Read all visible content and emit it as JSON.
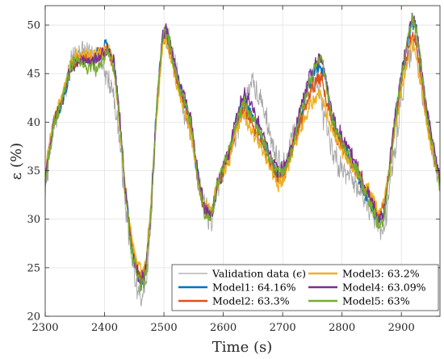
{
  "chart_data": {
    "type": "line",
    "xlabel": "Time (s)",
    "ylabel": "ε (%)",
    "xlim": [
      2300,
      2965
    ],
    "ylim": [
      20,
      52
    ],
    "xticks": [
      2300,
      2400,
      2500,
      2600,
      2700,
      2800,
      2900
    ],
    "yticks": [
      20,
      25,
      30,
      35,
      40,
      45,
      50
    ],
    "grid": true,
    "legend_position": "bottom-right",
    "legend_columns": 2,
    "series": [
      {
        "name": "Validation data (ϵ)",
        "color": "#a6a6a6",
        "noise": 1.6,
        "x": [
          2300,
          2305,
          2315,
          2330,
          2345,
          2360,
          2375,
          2390,
          2405,
          2415,
          2425,
          2435,
          2445,
          2455,
          2462,
          2470,
          2478,
          2488,
          2497,
          2503,
          2510,
          2520,
          2532,
          2545,
          2557,
          2568,
          2580,
          2590,
          2600,
          2610,
          2622,
          2635,
          2645,
          2655,
          2665,
          2680,
          2692,
          2705,
          2715,
          2725,
          2735,
          2745,
          2755,
          2765,
          2772,
          2780,
          2790,
          2800,
          2812,
          2825,
          2840,
          2852,
          2862,
          2870,
          2880,
          2890,
          2900,
          2912,
          2918,
          2925,
          2933,
          2945,
          2955,
          2965
        ],
        "y": [
          32.5,
          35.5,
          40.0,
          42.5,
          46.5,
          47.5,
          46.5,
          47.0,
          44.5,
          43.0,
          38.5,
          31.5,
          26.0,
          22.5,
          22.0,
          23.5,
          29.5,
          41.0,
          48.0,
          49.0,
          48.5,
          45.5,
          41.5,
          39.0,
          34.5,
          31.5,
          29.5,
          33.0,
          35.0,
          36.5,
          39.0,
          41.5,
          44.0,
          43.5,
          42.0,
          38.5,
          36.5,
          35.0,
          38.5,
          39.0,
          42.0,
          44.0,
          44.5,
          42.0,
          39.5,
          37.5,
          36.0,
          35.5,
          34.5,
          33.5,
          32.0,
          31.0,
          29.5,
          28.5,
          33.0,
          37.5,
          42.5,
          46.5,
          48.0,
          48.5,
          44.0,
          40.0,
          36.5,
          33.0
        ]
      },
      {
        "name": "Model1: 64.16%",
        "color": "#0072bd",
        "noise": 0.9,
        "x": [
          2300,
          2305,
          2315,
          2330,
          2345,
          2360,
          2375,
          2390,
          2405,
          2415,
          2425,
          2435,
          2445,
          2455,
          2462,
          2470,
          2478,
          2488,
          2497,
          2503,
          2510,
          2520,
          2532,
          2545,
          2557,
          2568,
          2580,
          2590,
          2600,
          2610,
          2622,
          2635,
          2645,
          2655,
          2665,
          2680,
          2692,
          2705,
          2715,
          2725,
          2735,
          2745,
          2755,
          2765,
          2772,
          2780,
          2790,
          2800,
          2812,
          2825,
          2840,
          2852,
          2862,
          2870,
          2880,
          2890,
          2900,
          2912,
          2918,
          2925,
          2933,
          2945,
          2955,
          2965
        ],
        "y": [
          34.0,
          36.5,
          40.0,
          42.5,
          46.0,
          46.5,
          46.0,
          47.0,
          48.0,
          46.5,
          41.0,
          33.0,
          27.5,
          24.5,
          23.5,
          25.0,
          31.0,
          42.0,
          48.5,
          49.5,
          48.0,
          45.0,
          42.5,
          40.0,
          34.5,
          31.0,
          30.5,
          33.5,
          35.0,
          36.5,
          40.0,
          42.5,
          41.5,
          40.0,
          38.5,
          36.0,
          34.5,
          35.0,
          37.0,
          39.5,
          42.0,
          44.0,
          45.5,
          46.0,
          44.5,
          41.5,
          39.0,
          38.0,
          36.5,
          35.0,
          32.5,
          31.0,
          30.0,
          30.5,
          35.0,
          40.5,
          44.5,
          48.5,
          50.5,
          49.5,
          45.5,
          40.0,
          36.5,
          34.0
        ]
      },
      {
        "name": "Model2: 63.3%",
        "color": "#d95319",
        "noise": 0.9,
        "x": [
          2300,
          2305,
          2315,
          2330,
          2345,
          2360,
          2375,
          2390,
          2405,
          2415,
          2425,
          2435,
          2445,
          2455,
          2462,
          2470,
          2478,
          2488,
          2497,
          2503,
          2510,
          2520,
          2532,
          2545,
          2557,
          2568,
          2580,
          2590,
          2600,
          2610,
          2622,
          2635,
          2645,
          2655,
          2665,
          2680,
          2692,
          2705,
          2715,
          2725,
          2735,
          2745,
          2755,
          2765,
          2772,
          2780,
          2790,
          2800,
          2812,
          2825,
          2840,
          2852,
          2862,
          2870,
          2880,
          2890,
          2900,
          2912,
          2918,
          2925,
          2933,
          2945,
          2955,
          2965
        ],
        "y": [
          34.0,
          36.5,
          40.0,
          43.0,
          46.0,
          46.5,
          46.5,
          47.0,
          47.5,
          46.0,
          40.5,
          33.0,
          28.0,
          25.0,
          24.0,
          25.5,
          31.0,
          41.5,
          48.0,
          49.0,
          47.5,
          44.5,
          42.0,
          39.5,
          34.0,
          31.0,
          30.5,
          33.5,
          35.0,
          36.5,
          39.5,
          41.5,
          40.5,
          39.0,
          38.0,
          35.5,
          34.0,
          35.0,
          37.0,
          39.0,
          41.0,
          43.0,
          44.0,
          44.5,
          43.0,
          40.5,
          38.5,
          37.5,
          36.0,
          35.0,
          33.0,
          31.5,
          30.5,
          31.0,
          35.0,
          40.0,
          44.0,
          47.5,
          49.0,
          48.0,
          44.5,
          39.5,
          36.5,
          34.0
        ]
      },
      {
        "name": "Model3: 63.2%",
        "color": "#edb120",
        "noise": 0.9,
        "x": [
          2300,
          2305,
          2315,
          2330,
          2345,
          2360,
          2375,
          2390,
          2405,
          2415,
          2425,
          2435,
          2445,
          2455,
          2462,
          2470,
          2478,
          2488,
          2497,
          2503,
          2510,
          2520,
          2532,
          2545,
          2557,
          2568,
          2580,
          2590,
          2600,
          2610,
          2622,
          2635,
          2645,
          2655,
          2665,
          2680,
          2692,
          2705,
          2715,
          2725,
          2735,
          2745,
          2755,
          2765,
          2772,
          2780,
          2790,
          2800,
          2812,
          2825,
          2840,
          2852,
          2862,
          2870,
          2880,
          2890,
          2900,
          2912,
          2918,
          2925,
          2933,
          2945,
          2955,
          2965
        ],
        "y": [
          34.5,
          37.0,
          40.5,
          43.0,
          46.5,
          47.0,
          47.0,
          47.0,
          47.5,
          46.0,
          40.0,
          33.0,
          28.5,
          25.5,
          24.5,
          26.0,
          31.5,
          41.0,
          47.5,
          48.5,
          47.0,
          44.0,
          41.5,
          39.0,
          34.0,
          31.5,
          31.0,
          33.5,
          35.0,
          36.0,
          39.0,
          40.5,
          39.5,
          38.5,
          37.5,
          35.0,
          33.5,
          34.5,
          36.5,
          38.5,
          40.0,
          41.5,
          42.5,
          43.0,
          41.5,
          39.5,
          38.0,
          37.0,
          36.0,
          35.0,
          33.5,
          32.0,
          31.0,
          31.5,
          35.0,
          39.5,
          43.0,
          46.5,
          48.0,
          47.0,
          43.5,
          39.0,
          36.0,
          34.0
        ]
      },
      {
        "name": "Model4: 63.09%",
        "color": "#7e2f8e",
        "noise": 0.9,
        "x": [
          2300,
          2305,
          2315,
          2330,
          2345,
          2360,
          2375,
          2390,
          2405,
          2415,
          2425,
          2435,
          2445,
          2455,
          2462,
          2470,
          2478,
          2488,
          2497,
          2503,
          2510,
          2520,
          2532,
          2545,
          2557,
          2568,
          2580,
          2590,
          2600,
          2610,
          2622,
          2635,
          2645,
          2655,
          2665,
          2680,
          2692,
          2705,
          2715,
          2725,
          2735,
          2745,
          2755,
          2765,
          2772,
          2780,
          2790,
          2800,
          2812,
          2825,
          2840,
          2852,
          2862,
          2870,
          2880,
          2890,
          2900,
          2912,
          2918,
          2925,
          2933,
          2945,
          2955,
          2965
        ],
        "y": [
          34.0,
          36.5,
          40.0,
          42.5,
          46.0,
          46.5,
          46.0,
          46.5,
          47.5,
          46.5,
          41.0,
          33.0,
          27.5,
          24.5,
          23.5,
          25.0,
          31.0,
          42.0,
          48.5,
          49.5,
          48.0,
          45.5,
          43.0,
          40.5,
          35.0,
          31.0,
          30.5,
          33.5,
          35.5,
          37.0,
          40.5,
          43.0,
          42.0,
          40.5,
          39.0,
          36.5,
          35.0,
          35.5,
          37.5,
          40.0,
          42.5,
          44.5,
          46.0,
          47.0,
          45.0,
          42.0,
          39.5,
          38.5,
          37.0,
          35.5,
          33.0,
          31.5,
          30.0,
          30.5,
          35.5,
          41.0,
          45.0,
          49.0,
          51.0,
          50.0,
          46.0,
          40.5,
          37.0,
          34.0
        ]
      },
      {
        "name": "Model5: 63%",
        "color": "#77ac30",
        "noise": 0.9,
        "x": [
          2300,
          2305,
          2315,
          2330,
          2345,
          2360,
          2375,
          2390,
          2405,
          2415,
          2425,
          2435,
          2445,
          2455,
          2462,
          2470,
          2478,
          2488,
          2497,
          2503,
          2510,
          2520,
          2532,
          2545,
          2557,
          2568,
          2580,
          2590,
          2600,
          2610,
          2622,
          2635,
          2645,
          2655,
          2665,
          2680,
          2692,
          2705,
          2715,
          2725,
          2735,
          2745,
          2755,
          2765,
          2772,
          2780,
          2790,
          2800,
          2812,
          2825,
          2840,
          2852,
          2862,
          2870,
          2880,
          2890,
          2900,
          2912,
          2918,
          2925,
          2933,
          2945,
          2955,
          2965
        ],
        "y": [
          33.5,
          36.0,
          40.0,
          42.5,
          46.0,
          46.0,
          45.5,
          45.5,
          47.0,
          46.0,
          40.5,
          32.5,
          27.0,
          24.0,
          23.0,
          24.5,
          30.5,
          42.0,
          48.5,
          49.5,
          48.0,
          45.0,
          42.5,
          40.0,
          34.5,
          30.5,
          30.0,
          33.5,
          35.5,
          37.0,
          40.0,
          42.0,
          41.0,
          39.5,
          38.5,
          36.0,
          34.5,
          35.0,
          37.0,
          39.5,
          42.0,
          44.0,
          45.5,
          46.5,
          44.5,
          41.5,
          39.0,
          38.0,
          36.5,
          35.0,
          32.5,
          31.0,
          29.5,
          30.0,
          35.0,
          40.5,
          44.5,
          48.5,
          50.5,
          49.5,
          45.5,
          40.0,
          36.5,
          33.5
        ]
      }
    ]
  }
}
